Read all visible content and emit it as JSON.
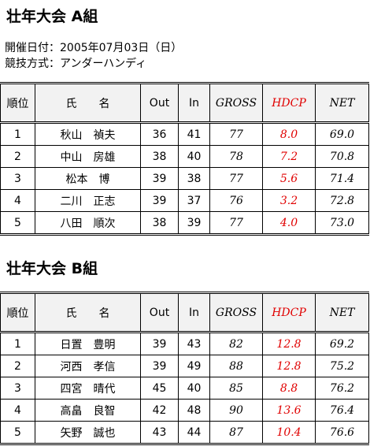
{
  "sections": [
    {
      "title": "壮年大会 A組",
      "info": [
        "開催日付：2005年07月03日（日）",
        "競技方式：アンダーハンディ"
      ],
      "header": [
        "順位",
        "氏　　名",
        "Out",
        "In",
        "GROSS",
        "HDCP",
        "NET"
      ],
      "rows": [
        [
          "1",
          "秋山　禎夫",
          "36",
          "41",
          "77",
          "8.0",
          "69.0"
        ],
        [
          "2",
          "中山　房雄",
          "38",
          "40",
          "78",
          "7.2",
          "70.8"
        ],
        [
          "3",
          "松本　博",
          "39",
          "38",
          "77",
          "5.6",
          "71.4"
        ],
        [
          "4",
          "二川　正志",
          "39",
          "37",
          "76",
          "3.2",
          "72.8"
        ],
        [
          "5",
          "八田　順次",
          "38",
          "39",
          "77",
          "4.0",
          "73.0"
        ]
      ]
    },
    {
      "title": "壮年大会 B組",
      "info": [],
      "header": [
        "順位",
        "氏　　名",
        "Out",
        "In",
        "GROSS",
        "HDCP",
        "NET"
      ],
      "rows": [
        [
          "1",
          "日置　豊明",
          "39",
          "43",
          "82",
          "12.8",
          "69.2"
        ],
        [
          "2",
          "河西　孝信",
          "39",
          "49",
          "88",
          "12.8",
          "75.2"
        ],
        [
          "3",
          "四宮　晴代",
          "45",
          "40",
          "85",
          "8.8",
          "76.2"
        ],
        [
          "4",
          "高畠　良智",
          "42",
          "48",
          "90",
          "13.6",
          "76.4"
        ],
        [
          "5",
          "矢野　誠也",
          "43",
          "44",
          "87",
          "10.4",
          "76.6"
        ]
      ]
    }
  ]
}
